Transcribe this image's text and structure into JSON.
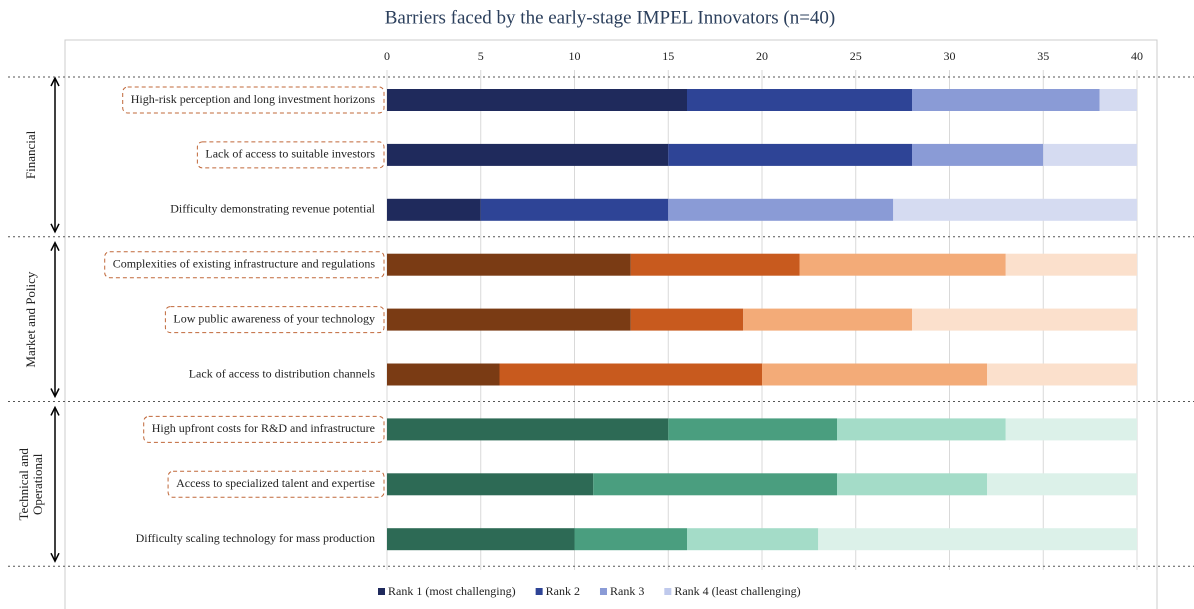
{
  "chart_data": {
    "type": "stacked_bar_horizontal",
    "title": "Barriers faced by the early-stage IMPEL Innovators (n=40)",
    "xlim": [
      0,
      40
    ],
    "xticks": [
      0,
      5,
      10,
      15,
      20,
      25,
      30,
      35,
      40
    ],
    "grid": true,
    "legend": "bottom",
    "groups": [
      {
        "name": [
          "Financial"
        ],
        "colors": [
          "#1f2a5c",
          "#2e4496",
          "#8a9bd6",
          "#d5dbf1"
        ],
        "categories": [
          "High-risk perception and long investment horizons",
          "Lack of access to suitable investors",
          "Difficulty demonstrating revenue potential"
        ],
        "highlighted": [
          true,
          true,
          false
        ]
      },
      {
        "name": [
          "Market and Policy"
        ],
        "colors": [
          "#7a3b14",
          "#c85a1e",
          "#f3ab78",
          "#fbe0cc"
        ],
        "categories": [
          "Complexities of existing infrastructure and regulations",
          "Low public awareness of your technology",
          "Lack of access to distribution channels"
        ],
        "highlighted": [
          true,
          true,
          false
        ]
      },
      {
        "name": [
          "Technical and",
          "Operational"
        ],
        "colors": [
          "#2d6a55",
          "#4a9e7f",
          "#a4dcc8",
          "#dcf1e9"
        ],
        "categories": [
          "High upfront costs for R&D and infrastructure",
          "Access to specialized talent and expertise",
          "Difficulty scaling technology for mass production"
        ],
        "highlighted": [
          true,
          true,
          false
        ]
      }
    ],
    "series": [
      {
        "name": "Rank 1 (most challenging)",
        "color": "#1f2a5c",
        "values": [
          16,
          15,
          5,
          13,
          13,
          6,
          15,
          11,
          10
        ]
      },
      {
        "name": "Rank 2",
        "color": "#2e4496",
        "values": [
          12,
          13,
          10,
          9,
          6,
          14,
          9,
          13,
          6
        ]
      },
      {
        "name": "Rank 3",
        "color": "#8a9bd6",
        "values": [
          10,
          7,
          12,
          11,
          9,
          12,
          9,
          8,
          7
        ]
      },
      {
        "name": "Rank 4 (least challenging)",
        "color": "#bfc9ec",
        "values": [
          2,
          5,
          13,
          7,
          12,
          8,
          7,
          8,
          17
        ]
      }
    ]
  }
}
